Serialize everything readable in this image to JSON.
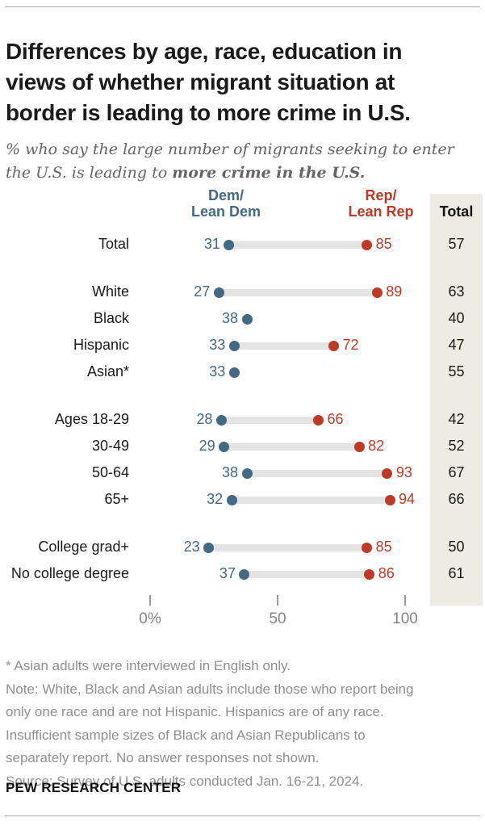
{
  "chart_data": {
    "type": "dumbbell",
    "title_lines": [
      "Differences by age, race, education in",
      "views of whether migrant situation at",
      "border is leading to more crime in U.S."
    ],
    "subtitle_line1": "% who say the large number of migrants seeking to enter",
    "subtitle_line2_prefix": "the U.S. is leading to ",
    "subtitle_bold": "more crime in the U.S.",
    "columns": {
      "dem": "Dem/\nLean Dem",
      "rep": "Rep/\nLean Rep",
      "total": "Total"
    },
    "axis": {
      "tick_labels": [
        "0%",
        "50",
        "100"
      ],
      "tick_values": [
        0,
        50,
        100
      ],
      "range": [
        0,
        100
      ],
      "grid": false
    },
    "colors": {
      "dem": "#436983",
      "rep": "#bf3927",
      "bar": "#e4e4e4",
      "total_bg": "#ecece3"
    },
    "rows": [
      {
        "label": "Total",
        "dem": 31,
        "rep": 85,
        "total": 57,
        "group": 0
      },
      {
        "label": "White",
        "dem": 27,
        "rep": 89,
        "total": 63,
        "group": 1
      },
      {
        "label": "Black",
        "dem": 38,
        "rep": null,
        "total": 40,
        "group": 1
      },
      {
        "label": "Hispanic",
        "dem": 33,
        "rep": 72,
        "total": 47,
        "group": 1
      },
      {
        "label": "Asian*",
        "dem": 33,
        "rep": null,
        "total": 55,
        "group": 1
      },
      {
        "label": "Ages 18-29",
        "dem": 28,
        "rep": 66,
        "total": 42,
        "group": 2
      },
      {
        "label": "30-49",
        "dem": 29,
        "rep": 82,
        "total": 52,
        "group": 2
      },
      {
        "label": "50-64",
        "dem": 38,
        "rep": 93,
        "total": 67,
        "group": 2
      },
      {
        "label": "65+",
        "dem": 32,
        "rep": 94,
        "total": 66,
        "group": 2
      },
      {
        "label": "College grad+",
        "dem": 23,
        "rep": 85,
        "total": 50,
        "group": 3
      },
      {
        "label": "No college degree",
        "dem": 37,
        "rep": 86,
        "total": 61,
        "group": 3
      }
    ]
  },
  "footer": {
    "note_lines": [
      "* Asian adults were interviewed in English only.",
      "Note: White, Black and Asian adults include those who report being",
      "only one race and are not Hispanic. Hispanics are of any race.",
      "Insufficient sample sizes of Black and Asian Republicans to",
      "separately report. No answer responses not shown.",
      "Source: Survey of U.S. adults conducted Jan. 16-21, 2024."
    ],
    "brand": "PEW RESEARCH CENTER"
  }
}
